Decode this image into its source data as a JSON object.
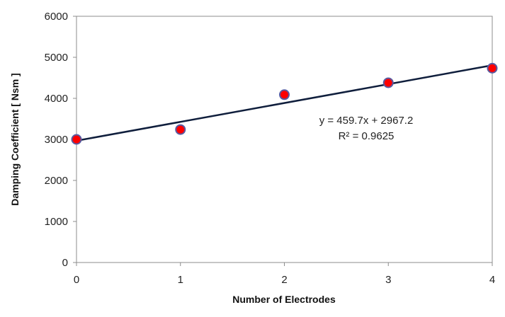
{
  "chart_data": {
    "type": "scatter",
    "title": "",
    "xlabel": "Number of Electrodes",
    "ylabel": "Damping Coefficient [ Nsm ]",
    "xlim": [
      0,
      4
    ],
    "ylim": [
      0,
      6000
    ],
    "xticks": [
      0,
      1,
      2,
      3,
      4
    ],
    "yticks": [
      0,
      1000,
      2000,
      3000,
      4000,
      5000,
      6000
    ],
    "grid": false,
    "legend": "none",
    "x": [
      0,
      1,
      2,
      3,
      4
    ],
    "y": [
      3000,
      3240,
      4090,
      4380,
      4735
    ],
    "marker_color": "#ff0000",
    "marker_edge_color": "#5a5aa0",
    "trendline": {
      "type": "linear",
      "slope": 459.7,
      "intercept": 2967.2,
      "color": "#0f1e3c",
      "equation": "y = 459.7x + 2967.2",
      "r2": "R² = 0.9625"
    }
  }
}
